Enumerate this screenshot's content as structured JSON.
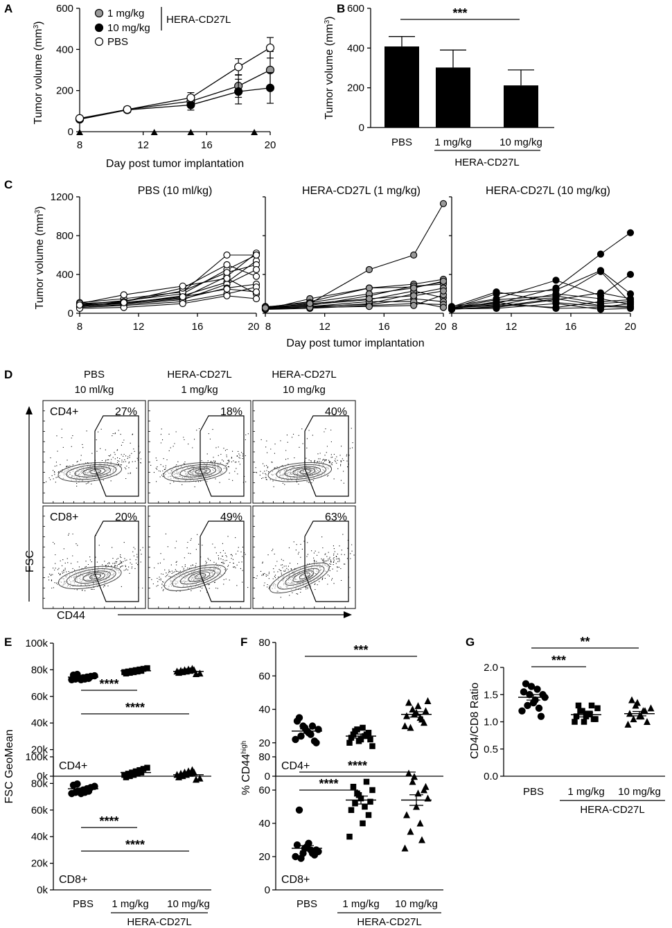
{
  "panels": {
    "A": {
      "letter": "A"
    },
    "B": {
      "letter": "B"
    },
    "C": {
      "letter": "C"
    },
    "D": {
      "letter": "D"
    },
    "E": {
      "letter": "E"
    },
    "F": {
      "letter": "F"
    },
    "G": {
      "letter": "G"
    }
  },
  "chart_data": [
    {
      "id": "A",
      "type": "line",
      "xlabel": "Day post tumor implantation",
      "ylabel": "Tumor volume (mm",
      "ylabel_sup": "3",
      "ylabel_close": ")",
      "xlim": [
        8,
        20
      ],
      "ylim": [
        0,
        600
      ],
      "xticks": [
        8,
        12,
        16,
        20
      ],
      "yticks": [
        0,
        200,
        400,
        600
      ],
      "dosing_days": [
        8,
        12.7,
        15,
        19
      ],
      "group_label": "HERA-CD27L",
      "series": [
        {
          "name": "1 mg/kg",
          "fill": "#9a9a9a",
          "x": [
            8,
            11,
            15,
            18,
            20
          ],
          "y": [
            62,
            108,
            148,
            222,
            300
          ],
          "err": [
            8,
            12,
            25,
            55,
            90
          ]
        },
        {
          "name": "10 mg/kg",
          "fill": "#000000",
          "x": [
            8,
            11,
            15,
            18,
            20
          ],
          "y": [
            60,
            106,
            130,
            195,
            213
          ],
          "err": [
            8,
            12,
            25,
            60,
            75
          ]
        },
        {
          "name": "PBS",
          "fill": "#ffffff",
          "x": [
            8,
            11,
            15,
            18,
            20
          ],
          "y": [
            65,
            108,
            165,
            315,
            408
          ],
          "err": [
            8,
            12,
            25,
            40,
            50
          ]
        }
      ]
    },
    {
      "id": "B",
      "type": "bar",
      "ylabel": "Tumor volume (mm",
      "ylabel_sup": "3",
      "ylabel_close": ")",
      "categories": [
        "PBS",
        "1 mg/kg",
        "10 mg/kg"
      ],
      "values": [
        408,
        302,
        212
      ],
      "errors": [
        50,
        88,
        78
      ],
      "ylim": [
        0,
        600
      ],
      "yticks": [
        0,
        200,
        400,
        600
      ],
      "group_label": "HERA-CD27L",
      "significance": "***"
    },
    {
      "id": "C",
      "type": "line",
      "xlabel": "Day post tumor implantation",
      "ylabel": "Tumor volume (mm",
      "ylabel_sup": "3",
      "ylabel_close": ")",
      "xlim": [
        8,
        20
      ],
      "ylim": [
        0,
        1200
      ],
      "xticks": [
        8,
        12,
        16,
        20
      ],
      "yticks": [
        0,
        400,
        800,
        1200
      ],
      "x": [
        8,
        11,
        15,
        18,
        20
      ],
      "subplots": [
        {
          "title": "PBS (10 ml/kg)",
          "fill": "#ffffff",
          "mice": [
            [
              80,
              110,
              160,
              380,
              620
            ],
            [
              90,
              130,
              200,
              450,
              600
            ],
            [
              70,
              100,
              180,
              320,
              540
            ],
            [
              100,
              120,
              230,
              420,
              500
            ],
            [
              60,
              90,
              140,
              300,
              450
            ],
            [
              110,
              150,
              220,
              600,
              600
            ],
            [
              70,
              120,
              260,
              500,
              380
            ],
            [
              90,
              100,
              150,
              260,
              300
            ],
            [
              60,
              80,
              120,
              200,
              270
            ],
            [
              100,
              190,
              280,
              360,
              200
            ],
            [
              50,
              60,
              100,
              180,
              150
            ],
            [
              85,
              110,
              170,
              250,
              220
            ]
          ]
        },
        {
          "title": "HERA-CD27L (1 mg/kg)",
          "fill": "#9a9a9a",
          "mice": [
            [
              50,
              100,
              450,
              600,
              1130
            ],
            [
              60,
              120,
              260,
              300,
              350
            ],
            [
              40,
              150,
              260,
              270,
              320
            ],
            [
              70,
              80,
              180,
              280,
              300
            ],
            [
              45,
              60,
              100,
              200,
              260
            ],
            [
              55,
              90,
              140,
              230,
              160
            ],
            [
              60,
              70,
              90,
              150,
              120
            ],
            [
              40,
              50,
              80,
              100,
              90
            ],
            [
              50,
              70,
              120,
              120,
              60
            ],
            [
              65,
              110,
              200,
              260,
              330
            ],
            [
              45,
              60,
              70,
              80,
              190
            ],
            [
              55,
              100,
              150,
              180,
              230
            ]
          ]
        },
        {
          "title": "HERA-CD27L (10 mg/kg)",
          "fill": "#000000",
          "mice": [
            [
              60,
              100,
              260,
              610,
              830
            ],
            [
              50,
              200,
              240,
              440,
              200
            ],
            [
              70,
              150,
              340,
              180,
              400
            ],
            [
              40,
              120,
              160,
              430,
              110
            ],
            [
              55,
              80,
              200,
              150,
              90
            ],
            [
              45,
              60,
              140,
              210,
              150
            ],
            [
              65,
              220,
              110,
              70,
              60
            ],
            [
              50,
              90,
              60,
              120,
              140
            ],
            [
              40,
              70,
              150,
              80,
              70
            ],
            [
              60,
              110,
              50,
              60,
              100
            ],
            [
              45,
              50,
              100,
              40,
              50
            ],
            [
              55,
              140,
              180,
              100,
              120
            ]
          ]
        }
      ]
    },
    {
      "id": "D",
      "type": "scatter",
      "xaxis_label": "CD44",
      "yaxis_label": "FSC",
      "columns": [
        {
          "title1": "PBS",
          "title2": "10 ml/kg"
        },
        {
          "title1": "HERA-CD27L",
          "title2": "1 mg/kg"
        },
        {
          "title1": "HERA-CD27L",
          "title2": "10 mg/kg"
        }
      ],
      "rows": [
        {
          "label": "CD4+",
          "percents": [
            "27%",
            "18%",
            "40%"
          ]
        },
        {
          "label": "CD8+",
          "percents": [
            "20%",
            "49%",
            "63%"
          ]
        }
      ]
    },
    {
      "id": "E",
      "type": "scatter",
      "ylabel": "FSC GeoMean",
      "categories": [
        "PBS",
        "1 mg/kg",
        "10 mg/kg"
      ],
      "group_label": "HERA-CD27L",
      "yticks": [
        "0k",
        "20k",
        "40k",
        "60k",
        "80k",
        "100k"
      ],
      "ytick_values": [
        0,
        20000,
        40000,
        60000,
        80000,
        100000
      ],
      "ylim": [
        0,
        100000
      ],
      "subplots": [
        {
          "label": "CD4+",
          "means": [
            74500,
            79200,
            78800
          ],
          "sig": [
            {
              "text": "****",
              "from": 0,
              "to": 1
            },
            {
              "text": "****",
              "from": 0,
              "to": 2
            }
          ]
        },
        {
          "label": "CD8+",
          "means": [
            76000,
            88200,
            86500
          ],
          "sig": [
            {
              "text": "****",
              "from": 0,
              "to": 1
            },
            {
              "text": "****",
              "from": 0,
              "to": 2
            }
          ]
        }
      ]
    },
    {
      "id": "F",
      "type": "scatter",
      "ylabel": "% CD44",
      "ylabel_sup": "high",
      "categories": [
        "PBS",
        "1 mg/kg",
        "10 mg/kg"
      ],
      "group_label": "HERA-CD27L",
      "yticks": [
        0,
        20,
        40,
        60,
        80
      ],
      "ylim": [
        0,
        80
      ],
      "subplots": [
        {
          "label": "CD4+",
          "means": [
            27,
            24,
            37
          ],
          "values": [
            [
              22,
              35,
              30,
              27,
              25,
              21,
              28,
              33,
              24,
              29,
              26,
              30,
              20
            ],
            [
              20,
              25,
              28,
              22,
              24,
              26,
              18,
              23,
              27,
              21,
              29,
              25,
              22
            ],
            [
              30,
              44,
              40,
              38,
              35,
              32,
              45,
              36,
              29,
              37,
              42,
              34,
              39
            ]
          ],
          "sig": [
            {
              "text": "***",
              "from": 0,
              "to": 2
            }
          ]
        },
        {
          "label": "CD8+",
          "means": [
            25,
            54,
            54
          ],
          "values": [
            [
              20,
              48,
              22,
              26,
              24,
              21,
              23,
              27,
              19,
              25,
              28,
              22,
              24
            ],
            [
              32,
              62,
              58,
              55,
              50,
              45,
              60,
              48,
              52,
              57,
              40,
              65,
              53
            ],
            [
              25,
              70,
              65,
              50,
              40,
              60,
              55,
              45,
              35,
              68,
              58,
              30,
              62
            ]
          ],
          "sig": [
            {
              "text": "****",
              "from": 0,
              "to": 1
            },
            {
              "text": "****",
              "from": 0,
              "to": 2
            }
          ]
        }
      ]
    },
    {
      "id": "G",
      "type": "scatter",
      "ylabel": "CD4/CD8 Ratio",
      "categories": [
        "PBS",
        "1 mg/kg",
        "10 mg/kg"
      ],
      "group_label": "HERA-CD27L",
      "yticks": [
        "0.0",
        "0.5",
        "1.0",
        "1.5",
        "2.0"
      ],
      "ytick_values": [
        0,
        0.5,
        1.0,
        1.5,
        2.0
      ],
      "ylim": [
        0,
        2.0
      ],
      "means": [
        1.45,
        1.13,
        1.15
      ],
      "values": [
        [
          1.2,
          1.7,
          1.5,
          1.35,
          1.6,
          1.1,
          1.45,
          1.55,
          1.3,
          1.65,
          1.4,
          1.25,
          1.5
        ],
        [
          1.0,
          1.3,
          1.2,
          1.1,
          1.15,
          1.05,
          1.25,
          1.1,
          1.2,
          1.0,
          1.15,
          1.3,
          1.05
        ],
        [
          0.95,
          1.4,
          1.3,
          1.1,
          1.2,
          1.0,
          1.25,
          1.15,
          1.05,
          1.35,
          1.1,
          1.2
        ]
      ],
      "sig": [
        {
          "text": "***",
          "from": 0,
          "to": 1
        },
        {
          "text": "**",
          "from": 0,
          "to": 2
        }
      ]
    }
  ]
}
